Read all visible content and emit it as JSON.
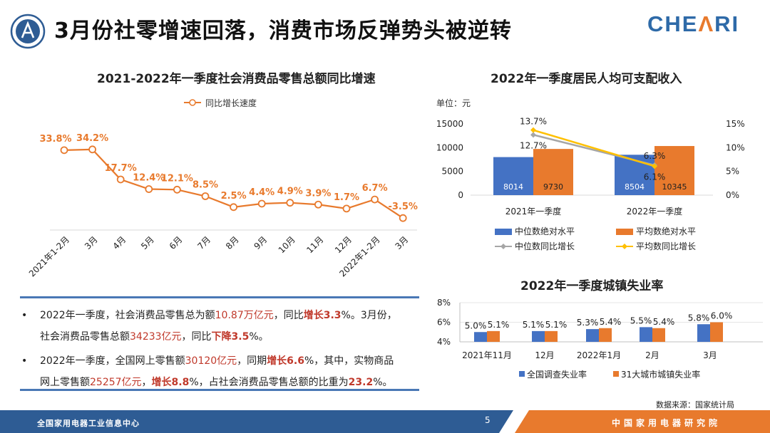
{
  "header": {
    "title": "3月份社零增速回落，消费市场反弹势头被逆转",
    "brand_prefix": "CHE",
    "brand_suffix": "RI"
  },
  "colors": {
    "orange": "#e87a2d",
    "blue": "#4472c4",
    "gray": "#a6a6a6",
    "yellow": "#ffc000",
    "red": "#c0392b",
    "navy": "#2e6aa8"
  },
  "chart_data": [
    {
      "type": "line",
      "title": "2021-2022年一季度社会消费品零售总额同比增速",
      "legend": [
        "同比增长速度"
      ],
      "categories": [
        "2021年1-2月",
        "3月",
        "4月",
        "5月",
        "6月",
        "7月",
        "8月",
        "9月",
        "10月",
        "11月",
        "12月",
        "2022年1-2月",
        "3月"
      ],
      "values": [
        33.8,
        34.2,
        17.7,
        12.4,
        12.1,
        8.5,
        2.5,
        4.4,
        4.9,
        3.9,
        1.7,
        6.7,
        -3.5
      ],
      "labels": [
        "33.8%",
        "34.2%",
        "17.7%",
        "12.4%",
        "12.1%",
        "8.5%",
        "2.5%",
        "4.4%",
        "4.9%",
        "3.9%",
        "1.7%",
        "6.7%",
        "-3.5%"
      ],
      "ylim": [
        -5,
        40
      ]
    },
    {
      "type": "bar",
      "title": "2022年一季度居民人均可支配收入",
      "unit": "单位：元",
      "categories": [
        "2021年一季度",
        "2022年一季度"
      ],
      "left_ticks": [
        "15000",
        "10000",
        "5000",
        "0"
      ],
      "right_ticks": [
        "15%",
        "10%",
        "5%",
        "0%"
      ],
      "ylim": [
        0,
        15000
      ],
      "y2lim": [
        0,
        15
      ],
      "series": [
        {
          "name": "中位数绝对水平",
          "values": [
            8014,
            8504
          ],
          "labels": [
            "8014",
            "8504"
          ]
        },
        {
          "name": "平均数绝对水平",
          "values": [
            9730,
            10345
          ],
          "labels": [
            "9730",
            "10345"
          ]
        }
      ],
      "line_series": [
        {
          "name": "中位数同比增长",
          "values": [
            12.7,
            6.3
          ],
          "labels": [
            "12.7%",
            "6.3%"
          ]
        },
        {
          "name": "平均数同比增长",
          "values": [
            13.7,
            6.1
          ],
          "labels": [
            "13.7%",
            "6.1%"
          ]
        }
      ]
    },
    {
      "type": "bar",
      "title": "2022年一季度城镇失业率",
      "categories": [
        "2021年11月",
        "12月",
        "2022年1月",
        "2月",
        "3月"
      ],
      "ticks": [
        "8%",
        "6%",
        "4%"
      ],
      "ylim": [
        4,
        8
      ],
      "series": [
        {
          "name": "全国调查失业率",
          "values": [
            5.0,
            5.1,
            5.3,
            5.5,
            5.8
          ],
          "labels": [
            "5.0%",
            "5.1%",
            "5.3%",
            "5.5%",
            "5.8%"
          ]
        },
        {
          "name": "31大城市城镇失业率",
          "values": [
            5.1,
            5.1,
            5.4,
            5.4,
            6.0
          ],
          "labels": [
            "5.1%",
            "5.1%",
            "5.4%",
            "5.4%",
            "6.0%"
          ]
        }
      ]
    }
  ],
  "bullets": [
    {
      "parts": [
        {
          "t": "2022年一季度，社会消费品零售总为额",
          "s": ""
        },
        {
          "t": "10.87万亿元",
          "s": "hl"
        },
        {
          "t": "，同比",
          "s": ""
        },
        {
          "t": "增长3.3",
          "s": "hlb"
        },
        {
          "t": "%。3月份，",
          "s": ""
        }
      ],
      "parts2": [
        {
          "t": "社会消费品零售总额",
          "s": ""
        },
        {
          "t": "34233亿元",
          "s": "hl"
        },
        {
          "t": "，同比",
          "s": ""
        },
        {
          "t": "下降3.5",
          "s": "hlb"
        },
        {
          "t": "%。",
          "s": ""
        }
      ]
    },
    {
      "parts": [
        {
          "t": "2022年一季度，全国网上零售额",
          "s": ""
        },
        {
          "t": "30120亿元",
          "s": "hl"
        },
        {
          "t": "，同期",
          "s": ""
        },
        {
          "t": "增长6.6",
          "s": "hlb"
        },
        {
          "t": "%，其中，实物商品",
          "s": ""
        }
      ],
      "parts2": [
        {
          "t": "网上零售额",
          "s": ""
        },
        {
          "t": "25257亿元",
          "s": "hl"
        },
        {
          "t": "，",
          "s": ""
        },
        {
          "t": "增长8.8",
          "s": "hlb"
        },
        {
          "t": "%，占社会消费品零售总额的比重为",
          "s": ""
        },
        {
          "t": "23.2",
          "s": "hlb"
        },
        {
          "t": "%。",
          "s": ""
        }
      ]
    }
  ],
  "source_note": "数据来源：国家统计局",
  "footer": {
    "left": "全国家用电器工业信息中心",
    "right": "中国家用电器研究院",
    "page_number": "5"
  }
}
